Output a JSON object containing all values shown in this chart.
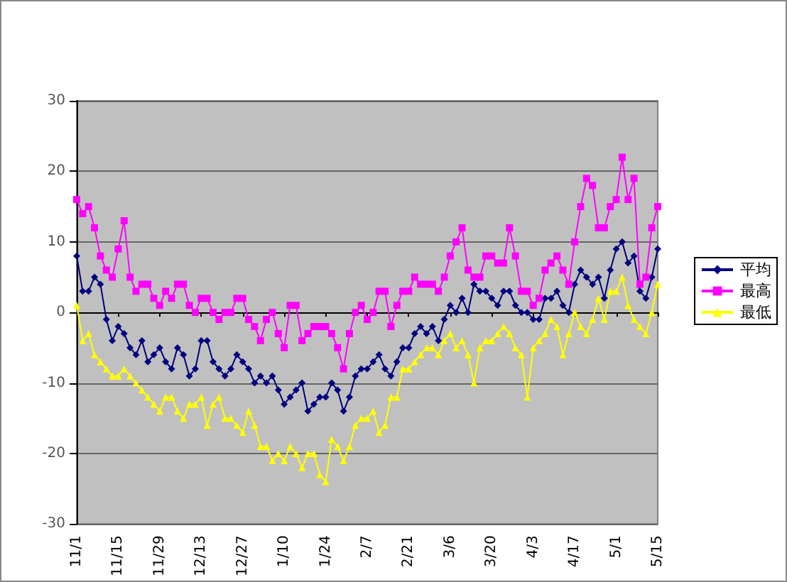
{
  "chart_data": {
    "type": "line",
    "categories": [
      "11/1",
      null,
      null,
      null,
      null,
      null,
      null,
      "11/15",
      null,
      null,
      null,
      null,
      null,
      null,
      "11/29",
      null,
      null,
      null,
      null,
      null,
      null,
      "12/13",
      null,
      null,
      null,
      null,
      null,
      null,
      "12/27",
      null,
      null,
      null,
      null,
      null,
      null,
      "1/10",
      null,
      null,
      null,
      null,
      null,
      null,
      "1/24",
      null,
      null,
      null,
      null,
      null,
      null,
      "2/7",
      null,
      null,
      null,
      null,
      null,
      null,
      "2/21",
      null,
      null,
      null,
      null,
      null,
      null,
      "3/6",
      null,
      null,
      null,
      null,
      null,
      null,
      "3/20",
      null,
      null,
      null,
      null,
      null,
      null,
      "4/3",
      null,
      null,
      null,
      null,
      null,
      null,
      "4/17",
      null,
      null,
      null,
      null,
      null,
      null,
      "5/1",
      null,
      null,
      null,
      null,
      null,
      null,
      "5/15"
    ],
    "series": [
      {
        "name": "平均",
        "color": "#000080",
        "marker": "diamond",
        "values": [
          8,
          3,
          3,
          5,
          4,
          -1,
          -4,
          -2,
          -3,
          -5,
          -6,
          -4,
          -7,
          -6,
          -5,
          -7,
          -8,
          -5,
          -6,
          -9,
          -8,
          -4,
          -4,
          -7,
          -8,
          -9,
          -8,
          -6,
          -7,
          -8,
          -10,
          -9,
          -10,
          -9,
          -11,
          -13,
          -12,
          -11,
          -10,
          -14,
          -13,
          -12,
          -12,
          -10,
          -11,
          -14,
          -12,
          -9,
          -8,
          -8,
          -7,
          -6,
          -8,
          -9,
          -7,
          -5,
          -5,
          -3,
          -2,
          -3,
          -2,
          -4,
          -1,
          1,
          0,
          2,
          0,
          4,
          3,
          3,
          2,
          1,
          3,
          3,
          1,
          0,
          0,
          -1,
          -1,
          2,
          2,
          3,
          1,
          0,
          4,
          6,
          5,
          4,
          5,
          2,
          6,
          9,
          10,
          7,
          8,
          3,
          2,
          5,
          9
        ]
      },
      {
        "name": "最高",
        "color": "#ff00ff",
        "marker": "square",
        "values": [
          16,
          14,
          15,
          12,
          8,
          6,
          5,
          9,
          13,
          5,
          3,
          4,
          4,
          2,
          1,
          3,
          2,
          4,
          4,
          1,
          0,
          2,
          2,
          0,
          -1,
          0,
          0,
          2,
          2,
          -1,
          -2,
          -4,
          -1,
          0,
          -3,
          -5,
          1,
          1,
          -4,
          -3,
          -2,
          -2,
          -2,
          -3,
          -5,
          -8,
          -3,
          0,
          1,
          -1,
          0,
          3,
          3,
          -2,
          1,
          3,
          3,
          5,
          4,
          4,
          4,
          3,
          5,
          8,
          10,
          12,
          6,
          5,
          5,
          8,
          8,
          7,
          7,
          12,
          8,
          3,
          3,
          1,
          2,
          6,
          7,
          8,
          6,
          4,
          10,
          15,
          19,
          18,
          12,
          12,
          15,
          16,
          22,
          16,
          19,
          4,
          5,
          12,
          15
        ]
      },
      {
        "name": "最低",
        "color": "#ffff00",
        "marker": "triangle",
        "values": [
          1,
          -4,
          -3,
          -6,
          -7,
          -8,
          -9,
          -9,
          -8,
          -9,
          -10,
          -11,
          -12,
          -13,
          -14,
          -12,
          -12,
          -14,
          -15,
          -13,
          -13,
          -12,
          -16,
          -13,
          -12,
          -15,
          -15,
          -16,
          -17,
          -14,
          -16,
          -19,
          -19,
          -21,
          -20,
          -21,
          -19,
          -20,
          -22,
          -20,
          -20,
          -23,
          -24,
          -18,
          -19,
          -21,
          -19,
          -16,
          -15,
          -15,
          -14,
          -17,
          -16,
          -12,
          -12,
          -8,
          -8,
          -7,
          -6,
          -5,
          -5,
          -6,
          -4,
          -3,
          -5,
          -4,
          -6,
          -10,
          -5,
          -4,
          -4,
          -3,
          -2,
          -3,
          -5,
          -6,
          -12,
          -5,
          -4,
          -3,
          -1,
          -2,
          -6,
          -3,
          0,
          -2,
          -3,
          -1,
          2,
          -1,
          3,
          3,
          5,
          1,
          -1,
          -2,
          -3,
          0,
          4
        ]
      }
    ],
    "ylim": [
      -30,
      30
    ],
    "yticks": [
      -30,
      -20,
      -10,
      0,
      10,
      20,
      30
    ],
    "grid": "y",
    "legend": "right",
    "line_style": "solid"
  }
}
